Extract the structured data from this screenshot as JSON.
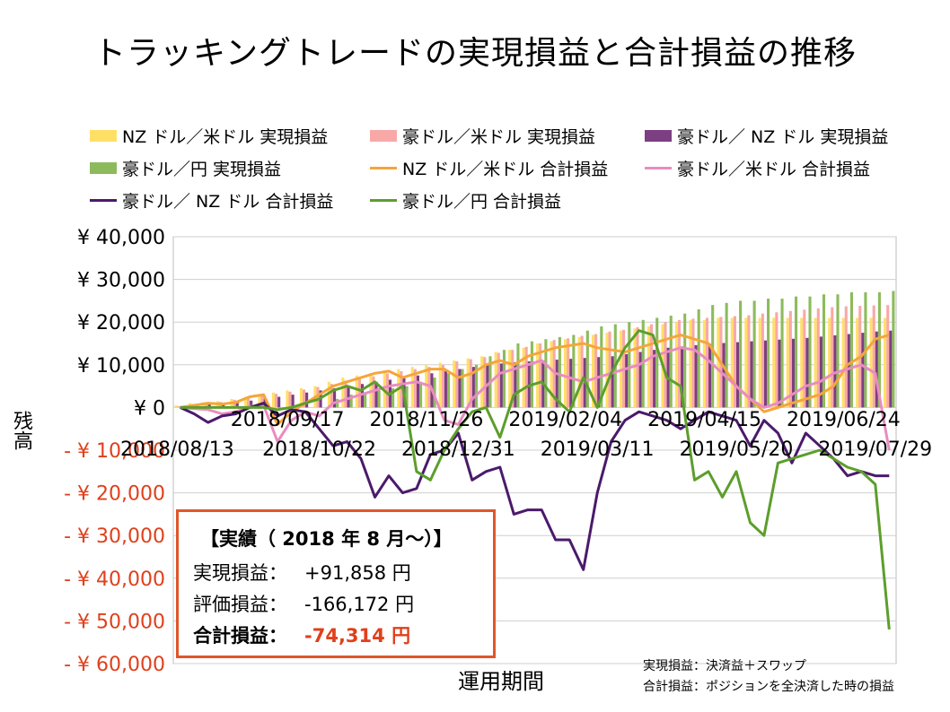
{
  "title": "トラッキングトレードの実現損益と合計損益の推移",
  "legend": [
    {
      "label": "NZ ドル／米ドル 実現損益",
      "kind": "bar",
      "color": "#ffe066"
    },
    {
      "label": "豪ドル／米ドル 実現損益",
      "kind": "bar",
      "color": "#f9a8a8"
    },
    {
      "label": "豪ドル／ NZ ドル 実現損益",
      "kind": "bar",
      "color": "#7b3f82"
    },
    {
      "label": "豪ドル／円 実現損益",
      "kind": "bar",
      "color": "#8dbb5c"
    },
    {
      "label": "NZ ドル／米ドル 合計損益",
      "kind": "line",
      "color": "#f5a53a"
    },
    {
      "label": "豪ドル／米ドル 合計損益",
      "kind": "line",
      "color": "#e98cc0"
    },
    {
      "label": "豪ドル／ NZ ドル 合計損益",
      "kind": "line",
      "color": "#4b1a6b"
    },
    {
      "label": "豪ドル／円 合計損益",
      "kind": "line",
      "color": "#5c9e2c"
    }
  ],
  "summary": {
    "heading": "【実績（ 2018 年 8 月～）】",
    "rows": [
      {
        "label": "実現損益：",
        "value": "+91,858 円"
      },
      {
        "label": "評価損益：",
        "value": "-166,172 円"
      },
      {
        "label": "合計損益：",
        "value": "-74,314 円"
      }
    ]
  },
  "notes": [
    "実現損益：決済益＋スワップ",
    "合計損益：ポジションを全決済した時の損益"
  ],
  "colors": {
    "negative_tick": "#e0401c",
    "summary_border": "#e0562a",
    "grid": "#cfcfcf"
  },
  "chart_data": {
    "type": "bar+line",
    "ylabel": "残高",
    "xlabel": "運用期間",
    "ylim": [
      -60000,
      40000
    ],
    "y_ticks": [
      {
        "value": 40000,
        "label": "¥ 40,000",
        "negative": false
      },
      {
        "value": 30000,
        "label": "¥ 30,000",
        "negative": false
      },
      {
        "value": 20000,
        "label": "¥ 20,000",
        "negative": false
      },
      {
        "value": 10000,
        "label": "¥ 10,000",
        "negative": false
      },
      {
        "value": 0,
        "label": "¥ 0",
        "negative": false
      },
      {
        "value": -10000,
        "label": "- ¥ 10,000",
        "negative": true
      },
      {
        "value": -20000,
        "label": "- ¥ 20,000",
        "negative": true
      },
      {
        "value": -30000,
        "label": "- ¥ 30,000",
        "negative": true
      },
      {
        "value": -40000,
        "label": "- ¥ 40,000",
        "negative": true
      },
      {
        "value": -50000,
        "label": "- ¥ 50,000",
        "negative": true
      },
      {
        "value": -60000,
        "label": "- ¥ 60,000",
        "negative": true
      }
    ],
    "x_tick_labels": [
      {
        "index": 0,
        "label": "2018/08/13",
        "row": 2
      },
      {
        "index": 5,
        "label": "2018/09/17",
        "row": 1
      },
      {
        "index": 10,
        "label": "2018/10/22",
        "row": 2
      },
      {
        "index": 15,
        "label": "2018/11/26",
        "row": 1
      },
      {
        "index": 20,
        "label": "2018/12/31",
        "row": 2
      },
      {
        "index": 25,
        "label": "2019/02/04",
        "row": 1
      },
      {
        "index": 30,
        "label": "2019/03/11",
        "row": 2
      },
      {
        "index": 35,
        "label": "2019/04/15",
        "row": 1
      },
      {
        "index": 40,
        "label": "2019/05/20",
        "row": 2
      },
      {
        "index": 45,
        "label": "2019/06/24",
        "row": 1
      },
      {
        "index": 50,
        "label": "2019/07/29",
        "row": 2
      }
    ],
    "bar_series": [
      {
        "name": "NZ ドル／米ドル 実現損益",
        "values": [
          500,
          1000,
          1200,
          1500,
          2000,
          2500,
          3000,
          3500,
          4000,
          4500,
          5000,
          6000,
          7000,
          7500,
          8000,
          8500,
          9000,
          9500,
          10000,
          10500,
          11000,
          11500,
          12000,
          13000,
          13500,
          14000,
          15000,
          15500,
          16000,
          16500,
          17000,
          17500,
          18000,
          18500,
          19000,
          19500,
          20000,
          20500,
          20500,
          21000,
          21000,
          21000,
          21000,
          21000,
          21000,
          21000,
          21000,
          21000,
          21000,
          21000,
          21000,
          21000
        ]
      },
      {
        "name": "豪ドル／米ドル 実現損益",
        "values": [
          300,
          800,
          1000,
          1300,
          1800,
          2200,
          2700,
          3200,
          3700,
          4200,
          4800,
          5500,
          6300,
          6800,
          7300,
          8000,
          8500,
          9000,
          9500,
          10000,
          10800,
          11300,
          11800,
          12800,
          13500,
          14200,
          15000,
          15800,
          16200,
          16800,
          17200,
          17800,
          18200,
          18800,
          19500,
          20000,
          20500,
          20800,
          21000,
          21200,
          21400,
          21600,
          22000,
          22300,
          22600,
          22900,
          23200,
          23500,
          23700,
          23800,
          23900,
          24000
        ]
      },
      {
        "name": "豪ドル／ NZ ドル 実現損益",
        "values": [
          200,
          500,
          800,
          1000,
          1300,
          1600,
          2000,
          2500,
          3000,
          3500,
          4000,
          4500,
          5000,
          5500,
          6000,
          6500,
          7000,
          7500,
          8000,
          8500,
          9000,
          9500,
          10000,
          10300,
          10600,
          10800,
          11000,
          11200,
          11400,
          11600,
          11800,
          12000,
          12500,
          13000,
          13500,
          14000,
          14300,
          14600,
          14900,
          15100,
          15300,
          15500,
          15700,
          15900,
          16100,
          16300,
          16600,
          16900,
          17200,
          17500,
          17800,
          18000
        ]
      },
      {
        "name": "豪ドル／円 実現損益",
        "values": [
          0,
          0,
          0,
          0,
          0,
          0,
          0,
          0,
          0,
          0,
          0,
          2000,
          3000,
          3500,
          4000,
          4500,
          5000,
          6000,
          7000,
          8000,
          9000,
          10000,
          12000,
          13500,
          15000,
          15500,
          16000,
          16500,
          17000,
          18000,
          19000,
          19500,
          20000,
          20500,
          21000,
          21500,
          22000,
          23000,
          24000,
          24500,
          25000,
          25000,
          25500,
          25500,
          26000,
          26000,
          26500,
          26500,
          27000,
          27000,
          27000,
          27300
        ]
      }
    ],
    "line_series": [
      {
        "name": "NZ ドル／米ドル 合計損益",
        "values": [
          0,
          500,
          1000,
          800,
          1200,
          2500,
          3000,
          -4000,
          -1000,
          1000,
          3000,
          5000,
          6000,
          7000,
          8000,
          8500,
          7000,
          8000,
          9000,
          9000,
          7000,
          8000,
          10000,
          11000,
          10000,
          12000,
          13000,
          14000,
          14500,
          15000,
          14000,
          13500,
          13000,
          14000,
          15000,
          16000,
          17000,
          16000,
          15000,
          10000,
          5000,
          2000,
          -1000,
          0,
          1000,
          2000,
          3000,
          5000,
          10000,
          12000,
          16000,
          17000
        ]
      },
      {
        "name": "豪ドル／米ドル 合計損益",
        "values": [
          0,
          -300,
          -500,
          -1500,
          -1000,
          200,
          500,
          -8000,
          -3000,
          -1000,
          -2000,
          1000,
          2000,
          3000,
          4000,
          5000,
          5500,
          6000,
          5000,
          -3000,
          -4000,
          2000,
          5000,
          8000,
          9000,
          10000,
          11000,
          8000,
          7000,
          6000,
          7000,
          8000,
          9000,
          10000,
          12000,
          13000,
          14000,
          13500,
          11000,
          8000,
          5000,
          2000,
          0,
          1000,
          3000,
          5000,
          6000,
          8000,
          9000,
          10000,
          8000,
          -10000
        ]
      },
      {
        "name": "豪ドル／ NZ ドル 合計損益",
        "values": [
          0,
          -1500,
          -3500,
          -2000,
          -1500,
          0,
          1000,
          -2000,
          -500,
          -1000,
          -5000,
          -9000,
          -8000,
          -12000,
          -21000,
          -16000,
          -20000,
          -19000,
          -11000,
          -10000,
          -6000,
          -17000,
          -15000,
          -14000,
          -25000,
          -24000,
          -24000,
          -31000,
          -31000,
          -38000,
          -20000,
          -8000,
          -3000,
          -1000,
          -2000,
          -3000,
          -5000,
          -3000,
          -1000,
          -2000,
          -3000,
          -9000,
          -3000,
          -6000,
          -13000,
          -6000,
          -9000,
          -12000,
          -16000,
          -15000,
          -16000,
          -16000
        ]
      },
      {
        "name": "豪ドル／円 合計損益",
        "values": [
          0,
          0,
          0,
          0,
          0,
          0,
          0,
          -500,
          0,
          1000,
          2000,
          4000,
          5000,
          4000,
          6000,
          3000,
          5000,
          -15000,
          -17000,
          -10000,
          -5000,
          -1000,
          0,
          -7000,
          3000,
          5000,
          6000,
          2000,
          -1000,
          7000,
          0,
          8000,
          14000,
          18000,
          17000,
          7000,
          5000,
          -17000,
          -15000,
          -21000,
          -15000,
          -27000,
          -30000,
          -13000,
          -12000,
          -11000,
          -10000,
          -12000,
          -14000,
          -15000,
          -18000,
          -52000
        ]
      }
    ]
  }
}
